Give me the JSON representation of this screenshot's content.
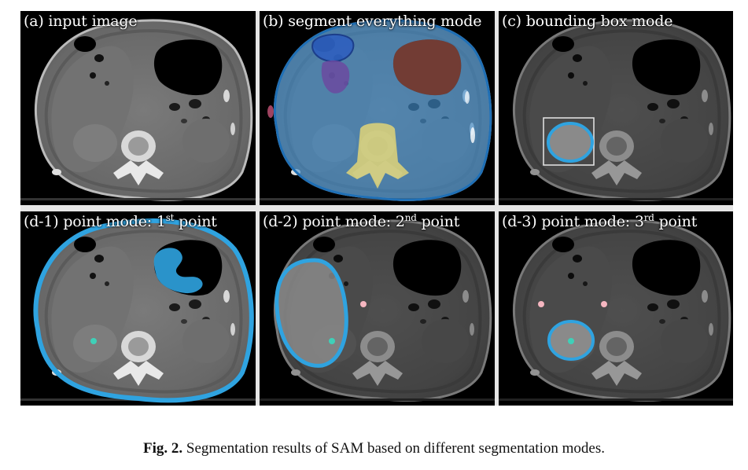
{
  "panels": [
    {
      "id": "a",
      "label": "(a) input image"
    },
    {
      "id": "b",
      "label": "(b) segment everything mode"
    },
    {
      "id": "c",
      "label": "(c) bounding box mode"
    },
    {
      "id": "d1",
      "label_pre": "(d-1) point mode: 1",
      "label_sup": "st",
      "label_post": " point"
    },
    {
      "id": "d2",
      "label_pre": "(d-2) point mode: 2",
      "label_sup": "nd",
      "label_post": " point"
    },
    {
      "id": "d3",
      "label_pre": "(d-3) point mode: 3",
      "label_sup": "rd",
      "label_post": " point"
    }
  ],
  "caption": {
    "prefix": "Fig. 2.",
    "text": " Segmentation results of SAM based on different segmentation modes."
  },
  "colors": {
    "mask_blue": "#2fa3e0",
    "point_positive": "#3fd0b8",
    "point_negative": "#f5b6c0",
    "segment_brown": "#7a3b2e",
    "segment_yellow": "#d8cf7a",
    "segment_purple": "#6b4aa0"
  }
}
